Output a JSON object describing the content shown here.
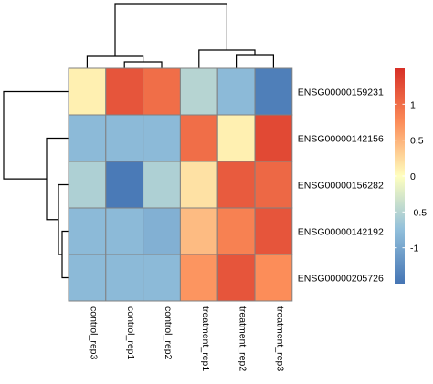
{
  "chart_data": {
    "type": "heatmap",
    "title": "",
    "columns": [
      "control_rep3",
      "control_rep1",
      "control_rep2",
      "treatment_rep1",
      "treatment_rep2",
      "treatment_rep3"
    ],
    "rows": [
      "ENSG00000159231",
      "ENSG00000142156",
      "ENSG00000156282",
      "ENSG00000142192",
      "ENSG00000205726"
    ],
    "values": [
      [
        0.1,
        1.2,
        1.0,
        -0.5,
        -0.8,
        -1.4
      ],
      [
        -0.8,
        -0.8,
        -0.8,
        1.0,
        0.1,
        1.3
      ],
      [
        -0.55,
        -1.45,
        -0.55,
        0.2,
        1.15,
        1.05
      ],
      [
        -0.8,
        -0.8,
        -0.9,
        0.45,
        0.85,
        1.2
      ],
      [
        -0.8,
        -0.8,
        -0.8,
        0.7,
        1.2,
        0.75
      ]
    ],
    "colorbar": {
      "range": [
        -1.5,
        1.5
      ],
      "ticks": [
        -1,
        -0.5,
        0,
        0.5,
        1
      ],
      "tick_labels": [
        "-1",
        "-0.5",
        "0",
        "0.5",
        "1"
      ],
      "colors": [
        "#4575b4",
        "#91bfdb",
        "#ffffbf",
        "#fc8d59",
        "#d73027"
      ]
    },
    "cell_border_color": "#808080",
    "row_dendrogram": true,
    "column_dendrogram": true
  }
}
